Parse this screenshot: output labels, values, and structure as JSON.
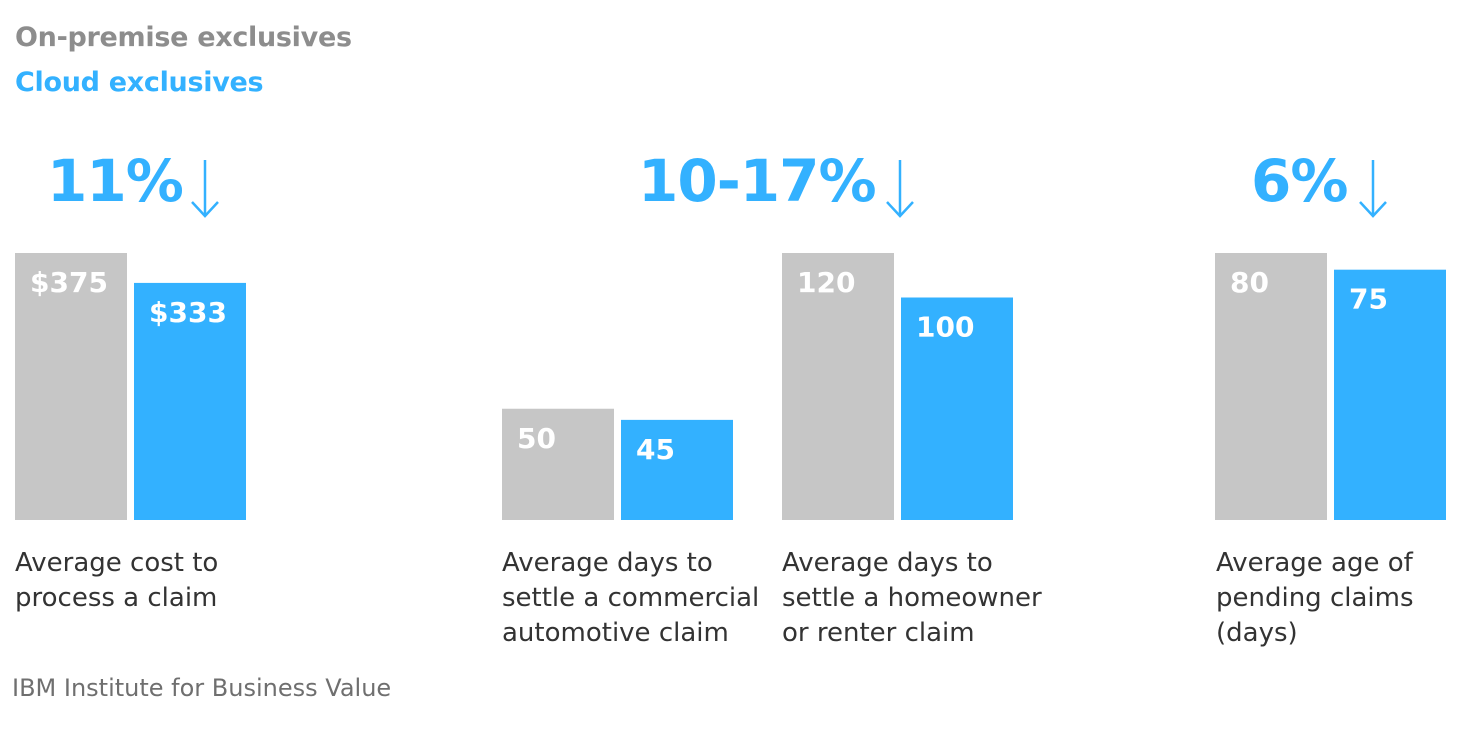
{
  "colors": {
    "onprem": "#c6c6c6",
    "onprem_text": "#8d8d8d",
    "cloud": "#33b1ff",
    "caption": "#333333",
    "source": "#6f6f6f"
  },
  "legend": {
    "onprem": "On-premise exclusives",
    "cloud": "Cloud exclusives"
  },
  "headlines": [
    {
      "text": "11%",
      "icon": "arrow-down-icon"
    },
    {
      "text": "10-17%",
      "icon": "arrow-down-icon"
    },
    {
      "text": "6%",
      "icon": "arrow-down-icon"
    }
  ],
  "chart_data": {
    "type": "bar",
    "series": [
      {
        "name": "On-premise exclusives",
        "values": [
          375,
          50,
          120,
          80
        ],
        "labels": [
          "$375",
          "50",
          "120",
          "80"
        ]
      },
      {
        "name": "Cloud exclusives",
        "values": [
          333,
          45,
          100,
          75
        ],
        "labels": [
          "$333",
          "45",
          "100",
          "75"
        ]
      }
    ],
    "categories": [
      [
        "Average cost to",
        "process a claim"
      ],
      [
        "Average days to",
        "settle a commercial",
        "automotive claim"
      ],
      [
        "Average days to",
        "settle a homeowner",
        "or renter claim"
      ],
      [
        "Average age of",
        "pending claims",
        "(days)"
      ]
    ],
    "legend_position": "top-left",
    "grid": false
  },
  "source": "IBM Institute for Business Value"
}
